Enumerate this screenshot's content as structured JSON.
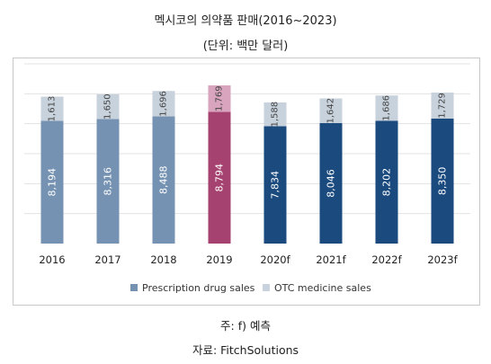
{
  "chart_data": {
    "type": "bar",
    "stacked": true,
    "title": "멕시코의 의약품 판매(2016~2023)",
    "subtitle": "(단위: 백만 달러)",
    "categories": [
      "2016",
      "2017",
      "2018",
      "2019",
      "2020f",
      "2021f",
      "2022f",
      "2023f"
    ],
    "series": [
      {
        "name": "Prescription drug sales",
        "values": [
          8194,
          8316,
          8488,
          8794,
          7834,
          8046,
          8202,
          8350
        ]
      },
      {
        "name": "OTC medicine sales",
        "values": [
          1613,
          1650,
          1696,
          1769,
          1588,
          1642,
          1686,
          1729
        ]
      }
    ],
    "value_labels": {
      "prescription": [
        "8,194",
        "8,316",
        "8,488",
        "8,794",
        "7,834",
        "8,046",
        "8,202",
        "8,350"
      ],
      "otc": [
        "1,613",
        "1,650",
        "1,696",
        "1,769",
        "1,588",
        "1,642",
        "1,686",
        "1,729"
      ]
    },
    "ylim": [
      0,
      12000
    ],
    "y_axis_labels_visible": false,
    "grid": true,
    "legend_position": "bottom",
    "highlight_category": "2019",
    "colors": {
      "historical_presc": "#7592b2",
      "historical_otc": "#c8d2dc",
      "highlight_presc": "#a5426f",
      "highlight_otc": "#d9a5be",
      "forecast_presc": "#1a4a7e",
      "forecast_otc": "#c8d2dc",
      "legend_presc": "#7592b2",
      "legend_otc": "#c8d2dc",
      "gridline": "#e3e3e3"
    }
  },
  "notes": {
    "forecast_note": "주: f) 예측",
    "source": "자료: FitchSolutions"
  }
}
